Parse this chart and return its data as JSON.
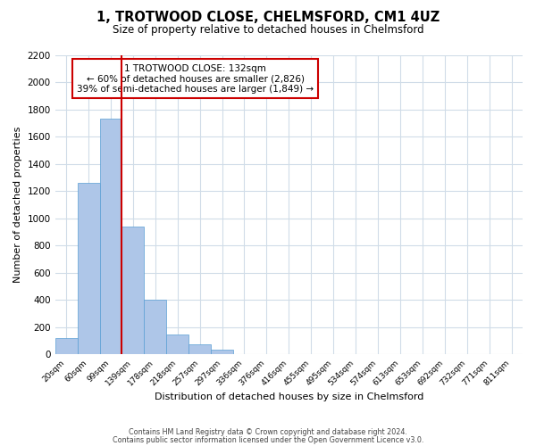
{
  "title": "1, TROTWOOD CLOSE, CHELMSFORD, CM1 4UZ",
  "subtitle": "Size of property relative to detached houses in Chelmsford",
  "xlabel": "Distribution of detached houses by size in Chelmsford",
  "ylabel": "Number of detached properties",
  "bar_values": [
    120,
    1260,
    1730,
    940,
    400,
    150,
    75,
    35,
    0,
    0,
    0,
    0,
    0,
    0,
    0,
    0,
    0,
    0,
    0,
    0,
    0
  ],
  "bin_labels": [
    "20sqm",
    "60sqm",
    "99sqm",
    "139sqm",
    "178sqm",
    "218sqm",
    "257sqm",
    "297sqm",
    "336sqm",
    "376sqm",
    "416sqm",
    "455sqm",
    "495sqm",
    "534sqm",
    "574sqm",
    "613sqm",
    "653sqm",
    "692sqm",
    "732sqm",
    "771sqm",
    "811sqm"
  ],
  "bar_color": "#aec6e8",
  "bar_edge_color": "#5a9fd4",
  "vline_color": "#cc0000",
  "annotation_title": "1 TROTWOOD CLOSE: 132sqm",
  "annotation_line1": "← 60% of detached houses are smaller (2,826)",
  "annotation_line2": "39% of semi-detached houses are larger (1,849) →",
  "annotation_box_color": "#cc0000",
  "ylim": [
    0,
    2200
  ],
  "yticks": [
    0,
    200,
    400,
    600,
    800,
    1000,
    1200,
    1400,
    1600,
    1800,
    2000,
    2200
  ],
  "footer_line1": "Contains HM Land Registry data © Crown copyright and database right 2024.",
  "footer_line2": "Contains public sector information licensed under the Open Government Licence v3.0.",
  "background_color": "#ffffff",
  "grid_color": "#d0dce8"
}
